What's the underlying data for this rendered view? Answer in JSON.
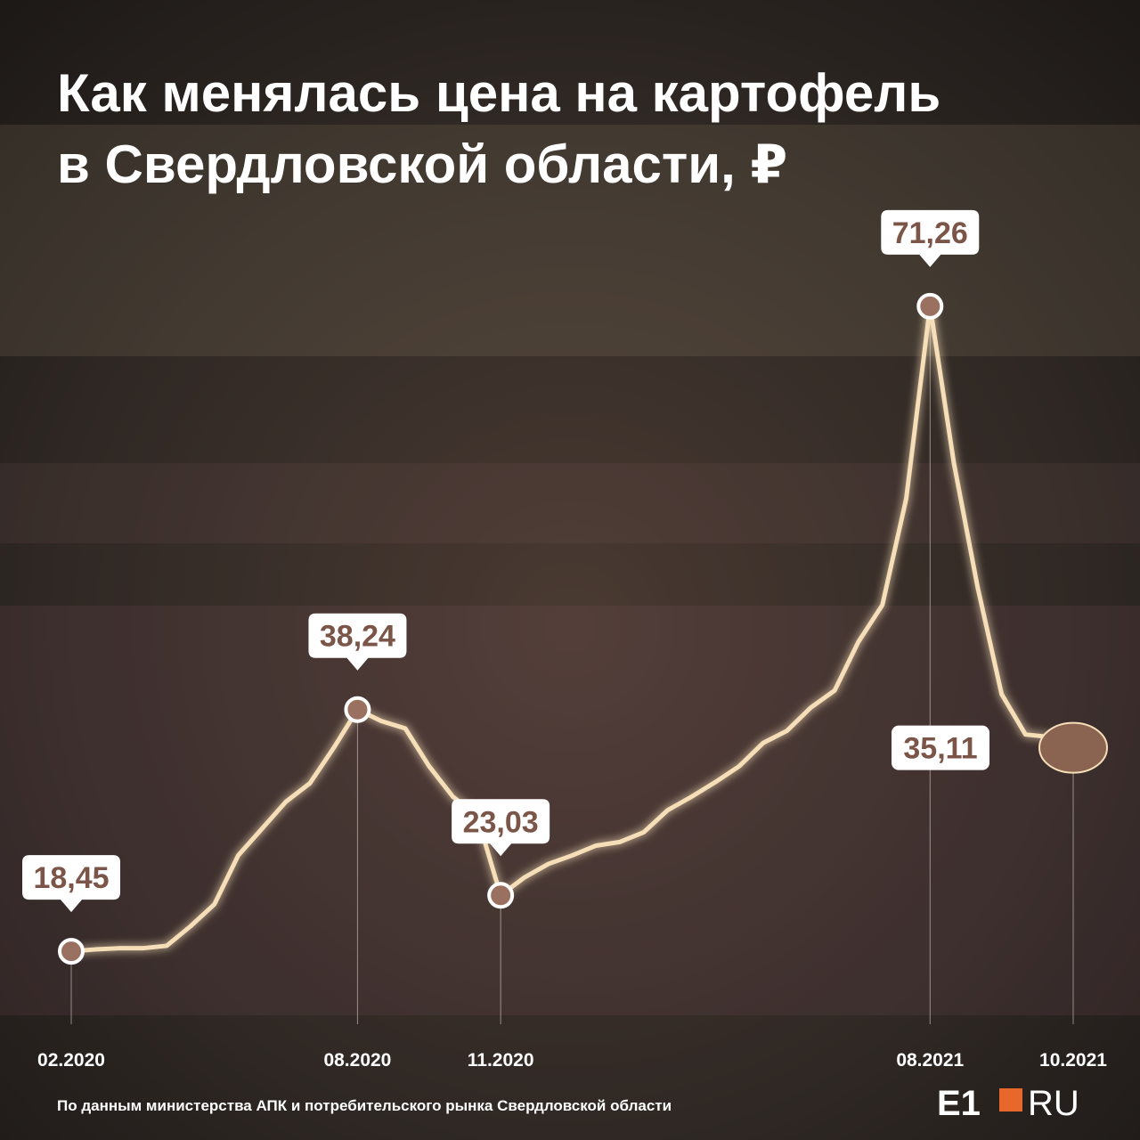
{
  "chart_data": {
    "type": "line",
    "title": "Как менялась цена на картофель в Свердловской области, ₽",
    "categories": [
      "02.2020",
      null,
      null,
      null,
      null,
      null,
      null,
      null,
      null,
      null,
      null,
      null,
      "08.2020",
      null,
      null,
      null,
      null,
      null,
      "11.2020",
      null,
      null,
      null,
      null,
      null,
      null,
      null,
      null,
      null,
      null,
      null,
      null,
      null,
      null,
      null,
      null,
      null,
      "08.2021",
      null,
      null,
      null,
      null,
      null,
      "10.2021"
    ],
    "values": [
      18.45,
      18.6,
      18.7,
      18.7,
      18.9,
      20.5,
      22.3,
      26.3,
      28.5,
      30.7,
      32.2,
      35.1,
      38.24,
      37.3,
      36.7,
      33.6,
      31.1,
      29.6,
      23.03,
      24.5,
      25.6,
      26.3,
      27.1,
      27.4,
      28.2,
      30.0,
      31.1,
      32.3,
      33.6,
      35.5,
      36.5,
      38.4,
      39.8,
      43.8,
      46.8,
      55.5,
      71.26,
      58.4,
      48.2,
      39.5,
      36.2,
      36.0,
      35.11
    ],
    "value_labels": [
      "18,45",
      null,
      null,
      null,
      null,
      null,
      null,
      null,
      null,
      null,
      null,
      null,
      "38,24",
      null,
      null,
      null,
      null,
      null,
      "23,03",
      null,
      null,
      null,
      null,
      null,
      null,
      null,
      null,
      null,
      null,
      null,
      null,
      null,
      null,
      null,
      null,
      null,
      "71,26",
      null,
      null,
      null,
      null,
      null,
      "35,11"
    ],
    "color": "#f6dfb8",
    "ylim": [
      10,
      80
    ],
    "source": "По данным министерства АПК и потребительского рынка Свердловской области",
    "logo_left": "E1",
    "logo_right": "RU"
  }
}
